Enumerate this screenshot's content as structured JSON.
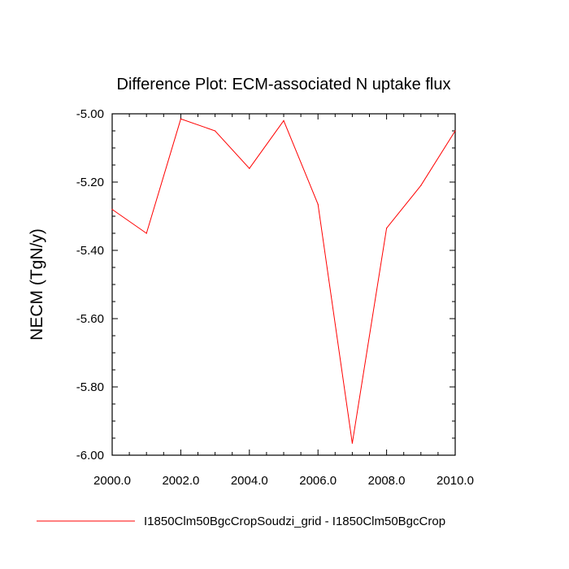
{
  "chart_data": {
    "type": "line",
    "title": "Difference Plot: ECM-associated N uptake flux",
    "xlabel": "",
    "ylabel": "NECM  (TgN/y)",
    "xlim": [
      2000,
      2010
    ],
    "ylim": [
      -6.0,
      -5.0
    ],
    "x_tick_labels": [
      "2000.0",
      "2002.0",
      "2004.0",
      "2006.0",
      "2008.0",
      "2010.0"
    ],
    "y_tick_labels": [
      "-5.00",
      "-5.20",
      "-5.40",
      "-5.60",
      "-5.80",
      "-6.00"
    ],
    "grid": false,
    "legend_position": "bottom",
    "series": [
      {
        "name": "I1850Clm50BgcCropSoudzi_grid - I1850Clm50BgcCrop",
        "color": "#ff0000",
        "x": [
          2000,
          2001,
          2002,
          2003,
          2004,
          2005,
          2006,
          2007,
          2008,
          2009,
          2010
        ],
        "values": [
          -5.28,
          -5.35,
          -5.015,
          -5.05,
          -5.16,
          -5.02,
          -5.265,
          -5.965,
          -5.335,
          -5.21,
          -5.05
        ]
      }
    ]
  }
}
